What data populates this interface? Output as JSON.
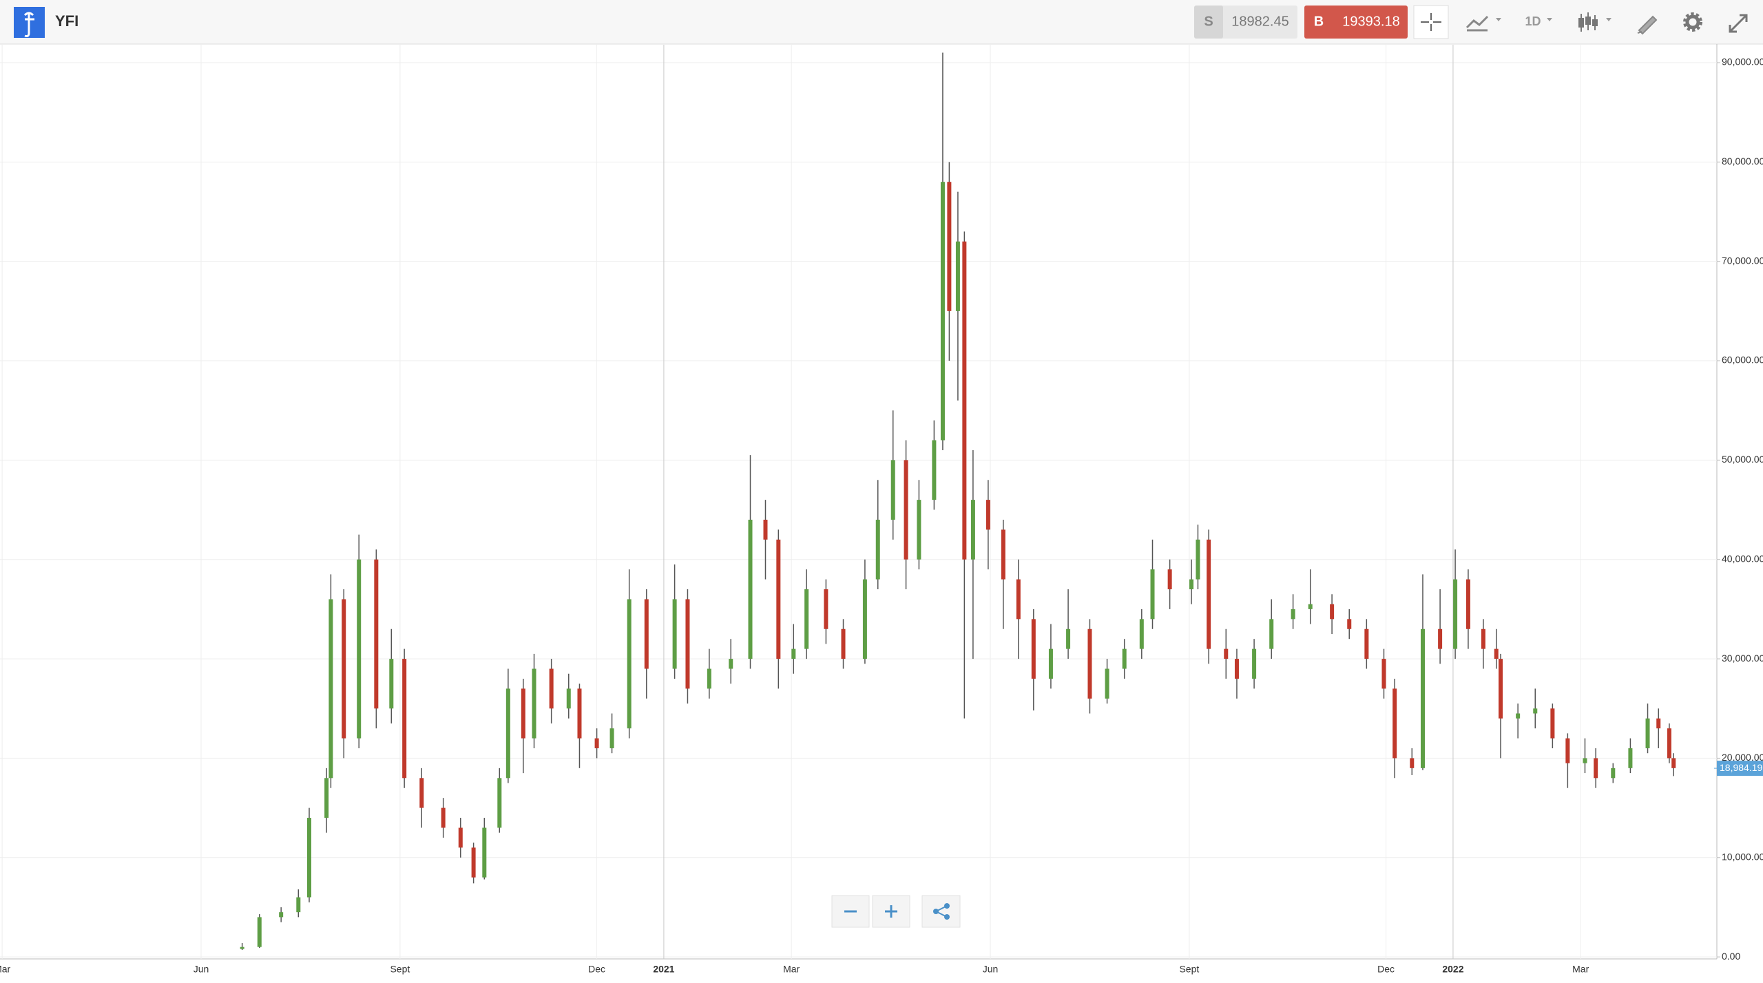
{
  "header": {
    "symbol": "YFI",
    "sell_label": "S",
    "sell_price": "18982.45",
    "buy_label": "B",
    "buy_price": "19393.18",
    "interval": "1D"
  },
  "chart_data": {
    "type": "candlestick",
    "up_color": "#5e9e45",
    "down_color": "#c0392b",
    "grid": true,
    "xlim": [
      -1,
      793
    ],
    "ylim": [
      -200,
      91800
    ],
    "xticks": [
      {
        "value": 0,
        "label": "Mar"
      },
      {
        "value": 92,
        "label": "Jun"
      },
      {
        "value": 184,
        "label": "Sept"
      },
      {
        "value": 275,
        "label": "Dec"
      },
      {
        "value": 306,
        "label": "2021"
      },
      {
        "value": 365,
        "label": "Mar"
      },
      {
        "value": 457,
        "label": "Jun"
      },
      {
        "value": 549,
        "label": "Sept"
      },
      {
        "value": 640,
        "label": "Dec"
      },
      {
        "value": 671,
        "label": "2022"
      },
      {
        "value": 730,
        "label": "Mar"
      }
    ],
    "yticks": [
      {
        "value": 0,
        "label": "0.00"
      },
      {
        "value": 10000,
        "label": "10,000.00"
      },
      {
        "value": 20000,
        "label": "20,000.00"
      },
      {
        "value": 30000,
        "label": "30,000.00"
      },
      {
        "value": 40000,
        "label": "40,000.00"
      },
      {
        "value": 50000,
        "label": "50,000.00"
      },
      {
        "value": 60000,
        "label": "60,000.00"
      },
      {
        "value": 70000,
        "label": "70,000.00"
      },
      {
        "value": 80000,
        "label": "80,000.00"
      },
      {
        "value": 90000,
        "label": "90,000.00"
      }
    ],
    "last_price": {
      "value": 18984.19,
      "label": "18,984.19"
    },
    "x": [
      111,
      119,
      129,
      137,
      142,
      150,
      152,
      158,
      165,
      173,
      180,
      186,
      194,
      204,
      212,
      218,
      223,
      230,
      234,
      241,
      246,
      254,
      262,
      267,
      275,
      282,
      290,
      298,
      311,
      317,
      327,
      337,
      346,
      353,
      359,
      366,
      372,
      381,
      389,
      399,
      405,
      412,
      418,
      424,
      431,
      435,
      438,
      442,
      445,
      449,
      456,
      463,
      470,
      477,
      485,
      493,
      503,
      511,
      519,
      527,
      532,
      540,
      550,
      553,
      558,
      566,
      571,
      579,
      587,
      597,
      605,
      615,
      623,
      631,
      639,
      644,
      652,
      657,
      665,
      672,
      678,
      685,
      691,
      693,
      701,
      709,
      717,
      724,
      732,
      737,
      745,
      753,
      761,
      766,
      771,
      773
    ],
    "open": [
      800,
      1000,
      4000,
      4500,
      6000,
      14000,
      18000,
      36000,
      22000,
      40000,
      25000,
      30000,
      18000,
      15000,
      13000,
      11000,
      8000,
      13000,
      18000,
      27000,
      22000,
      29000,
      25000,
      27000,
      22000,
      21000,
      23000,
      36000,
      29000,
      36000,
      27000,
      29000,
      30000,
      44000,
      42000,
      30000,
      31000,
      37000,
      33000,
      30000,
      38000,
      44000,
      50000,
      40000,
      46000,
      52000,
      78000,
      65000,
      72000,
      40000,
      46000,
      43000,
      38000,
      34000,
      28000,
      31000,
      33000,
      26000,
      29000,
      31000,
      34000,
      39000,
      37000,
      38000,
      42000,
      31000,
      30000,
      28000,
      31000,
      34000,
      35000,
      35500,
      34000,
      33000,
      30000,
      27000,
      20000,
      19000,
      33000,
      31000,
      38000,
      33000,
      31000,
      30000,
      24000,
      24500,
      25000,
      22000,
      19500,
      20000,
      18000,
      19000,
      21000,
      24000,
      23000,
      20000
    ],
    "high": [
      1400,
      4300,
      5000,
      6800,
      15000,
      19000,
      38500,
      37000,
      42500,
      41000,
      33000,
      31000,
      19000,
      16000,
      14000,
      11500,
      14000,
      19000,
      29000,
      28000,
      30500,
      30000,
      28500,
      27500,
      23000,
      24500,
      39000,
      37000,
      39500,
      37000,
      31000,
      32000,
      50500,
      46000,
      43000,
      33500,
      39000,
      38000,
      34000,
      40000,
      48000,
      55000,
      52000,
      48000,
      54000,
      91000,
      80000,
      77000,
      73000,
      51000,
      48000,
      44000,
      40000,
      35000,
      33500,
      37000,
      34000,
      30000,
      32000,
      35000,
      42000,
      40000,
      40000,
      43500,
      43000,
      33000,
      31000,
      32000,
      36000,
      36500,
      39000,
      36500,
      35000,
      34000,
      31000,
      28000,
      21000,
      38500,
      37000,
      41000,
      39000,
      34000,
      33000,
      30500,
      25500,
      27000,
      25500,
      22500,
      22000,
      21000,
      19500,
      22000,
      25500,
      25000,
      23500,
      20500
    ],
    "low": [
      700,
      900,
      3500,
      4000,
      5500,
      12500,
      17000,
      20000,
      21000,
      23000,
      23500,
      17000,
      13000,
      12000,
      10000,
      7400,
      7800,
      12500,
      17500,
      18500,
      21000,
      23500,
      24000,
      19000,
      20000,
      20500,
      22000,
      26000,
      28000,
      25500,
      26000,
      27500,
      29000,
      38000,
      27000,
      28500,
      30000,
      31500,
      29000,
      29500,
      37000,
      42000,
      37000,
      39000,
      45000,
      51000,
      60000,
      56000,
      24000,
      30000,
      39000,
      33000,
      30000,
      24800,
      27000,
      30000,
      24500,
      25500,
      28000,
      30000,
      33000,
      35000,
      35500,
      37000,
      29500,
      28000,
      26000,
      27000,
      30000,
      33000,
      33500,
      32500,
      32000,
      29000,
      26000,
      18000,
      18300,
      18800,
      29500,
      30000,
      31000,
      29000,
      29000,
      20000,
      22000,
      23000,
      21000,
      17000,
      18500,
      17000,
      17500,
      18500,
      20500,
      21000,
      19500,
      18200
    ],
    "close": [
      1000,
      4000,
      4500,
      6000,
      14000,
      18000,
      36000,
      22000,
      40000,
      25000,
      30000,
      18000,
      15000,
      13000,
      11000,
      8000,
      13000,
      18000,
      27000,
      22000,
      29000,
      25000,
      27000,
      22000,
      21000,
      23000,
      36000,
      29000,
      36000,
      27000,
      29000,
      30000,
      44000,
      42000,
      30000,
      31000,
      37000,
      33000,
      30000,
      38000,
      44000,
      50000,
      40000,
      46000,
      52000,
      78000,
      65000,
      72000,
      40000,
      46000,
      43000,
      38000,
      34000,
      28000,
      31000,
      33000,
      26000,
      29000,
      31000,
      34000,
      39000,
      37000,
      38000,
      42000,
      31000,
      30000,
      28000,
      31000,
      34000,
      35000,
      35500,
      34000,
      33000,
      30000,
      27000,
      20000,
      19000,
      33000,
      31000,
      38000,
      33000,
      31000,
      30000,
      24000,
      24500,
      25000,
      22000,
      19500,
      20000,
      18000,
      19000,
      21000,
      24000,
      23000,
      20000,
      19000
    ]
  }
}
